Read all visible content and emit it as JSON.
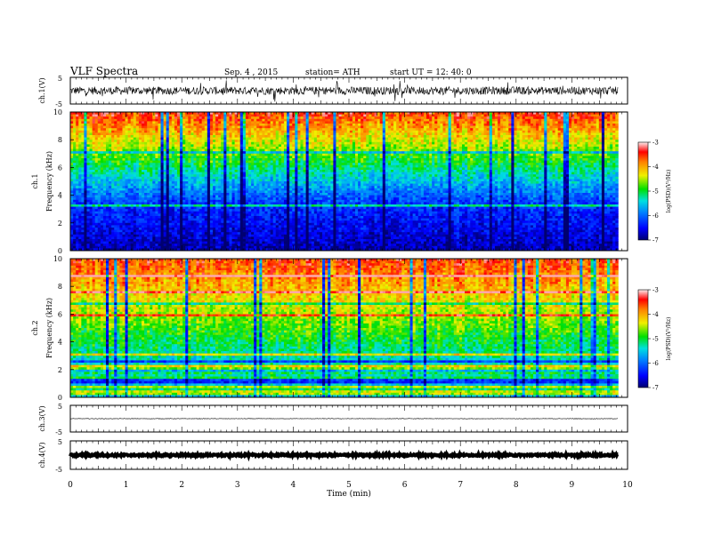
{
  "header": {
    "title": "VLF  Spectra",
    "date": "Sep. 4  , 2015",
    "station": "station= ATH",
    "start": "start  UT  =   12: 40: 0"
  },
  "chart_data": [
    {
      "id": "ch1-waveform",
      "type": "line",
      "ylabel": "ch.1(V)",
      "ylim": [
        -5,
        5
      ],
      "yticks": [
        "5",
        "-5"
      ],
      "xlim": [
        0,
        10
      ],
      "data_extent_min": 9.83,
      "amplitude": 1.5,
      "color": "#000000"
    },
    {
      "id": "ch1-spectrogram",
      "type": "heatmap",
      "ylabel_top": "ch.1",
      "ylabel": "Frequency  (kHz)",
      "ylim": [
        0,
        10
      ],
      "yticks": [
        "0",
        "2",
        "4",
        "6",
        "8",
        "10"
      ],
      "xlim": [
        0,
        10
      ],
      "colorbar": {
        "label": "log(PSD)(V²/Hz)",
        "ticks": [
          "-3",
          "-4",
          "-5",
          "-6",
          "-7"
        ],
        "range": [
          -7,
          -3
        ]
      }
    },
    {
      "id": "ch2-spectrogram",
      "type": "heatmap",
      "ylabel_top": "ch.2",
      "ylabel": "Frequency  (kHz)",
      "ylim": [
        0,
        10
      ],
      "yticks": [
        "0",
        "2",
        "4",
        "6",
        "8",
        "10"
      ],
      "xlim": [
        0,
        10
      ],
      "colorbar": {
        "label": "log(PSD)(V²/Hz)",
        "ticks": [
          "-3",
          "-4",
          "-5",
          "-6",
          "-7"
        ],
        "range": [
          -7,
          -3
        ]
      }
    },
    {
      "id": "ch3-waveform",
      "type": "line",
      "ylabel": "ch.3(V)",
      "ylim": [
        -5,
        5
      ],
      "yticks": [
        "5",
        "-5"
      ],
      "xlim": [
        0,
        10
      ],
      "amplitude": 0.1,
      "color": "#000000"
    },
    {
      "id": "ch4-waveform",
      "type": "line",
      "ylabel": "ch.4(V)",
      "ylim": [
        -5,
        5
      ],
      "yticks": [
        "5",
        "-5"
      ],
      "xlim": [
        0,
        10
      ],
      "amplitude": 0.3,
      "color": "#000000"
    }
  ],
  "xaxis": {
    "label": "Time  (min)",
    "ticks": [
      "0",
      "1",
      "2",
      "3",
      "4",
      "5",
      "6",
      "7",
      "8",
      "9",
      "10"
    ]
  }
}
